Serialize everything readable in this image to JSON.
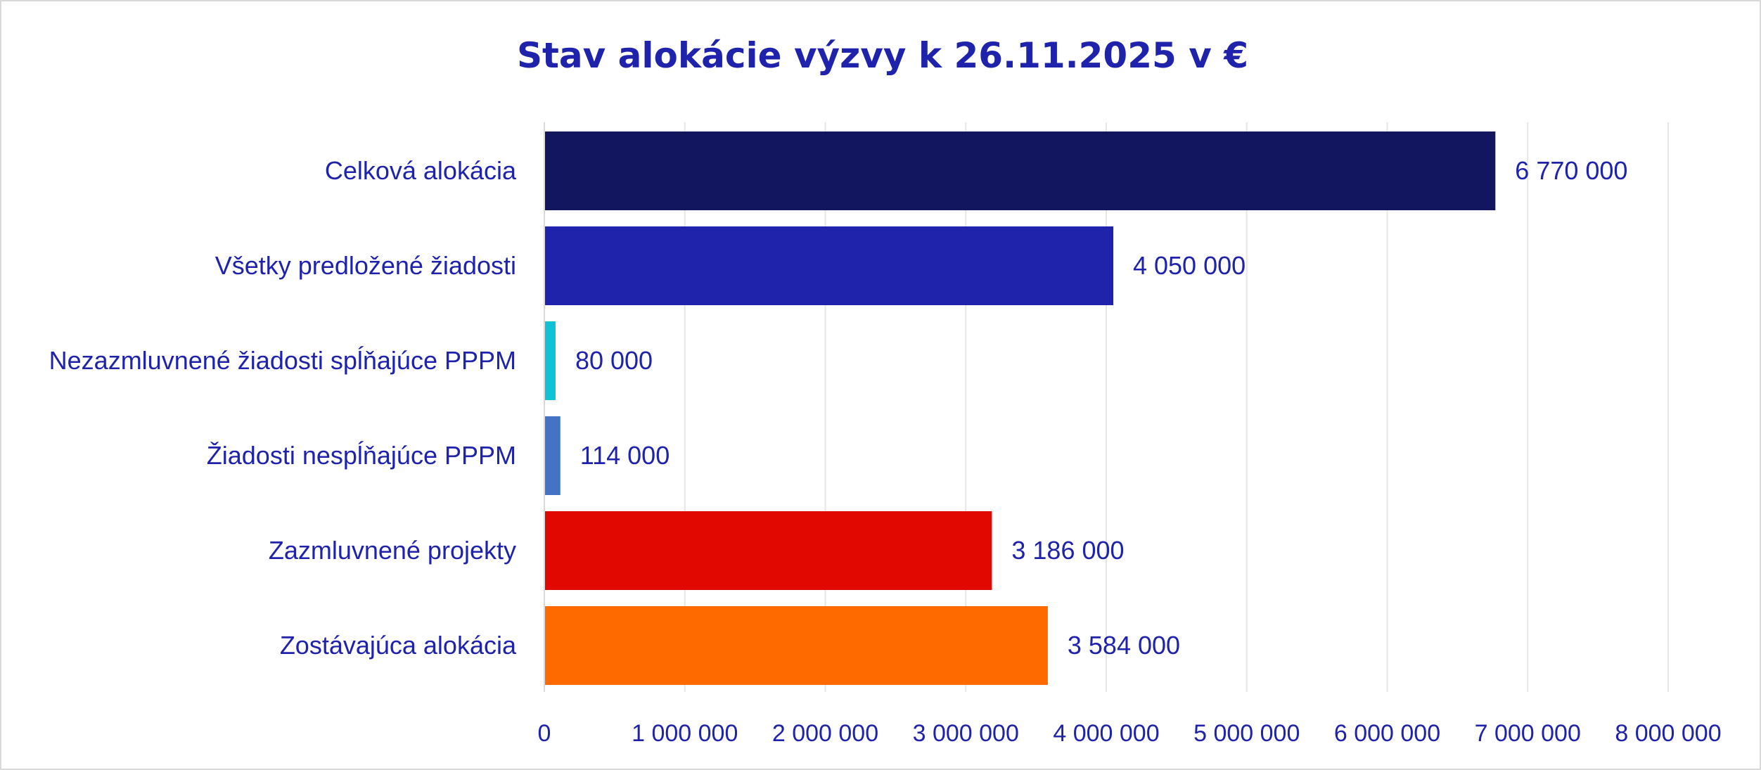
{
  "chart_data": {
    "type": "bar",
    "orientation": "horizontal",
    "title": "Stav alokácie výzvy k 26.11.2025 v €",
    "categories": [
      "Celková alokácia",
      "Všetky predložené žiadosti",
      "Nezazmluvnené žiadosti spĺňajúce PPPM",
      "Žiadosti nespĺňajúce PPPM",
      "Zazmluvnené projekty",
      "Zostávajúca alokácia"
    ],
    "values": [
      6770000,
      4050000,
      80000,
      114000,
      3186000,
      3584000
    ],
    "value_labels": [
      "6 770 000",
      "4 050 000",
      "80 000",
      "114 000",
      "3 186 000",
      "3 584 000"
    ],
    "bar_colors": [
      "#12165e",
      "#1f23ab",
      "#10c2d4",
      "#4472c4",
      "#e00800",
      "#ff6a00"
    ],
    "xlim": [
      0,
      8000000
    ],
    "xticks": [
      0,
      1000000,
      2000000,
      3000000,
      4000000,
      5000000,
      6000000,
      7000000,
      8000000
    ],
    "xtick_labels": [
      "0",
      "1 000 000",
      "2 000 000",
      "3 000 000",
      "4 000 000",
      "5 000 000",
      "6 000 000",
      "7 000 000",
      "8 000 000"
    ],
    "grid": true,
    "legend": "none",
    "text_color": "#1f23ab",
    "title_color": "#1f23ab",
    "grid_color": "#e6e6e6"
  }
}
